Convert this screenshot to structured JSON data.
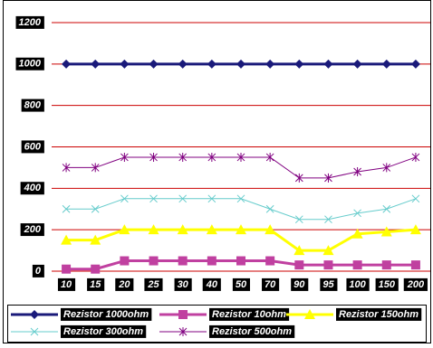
{
  "chart_data": {
    "type": "line",
    "categories": [
      "10",
      "15",
      "20",
      "25",
      "30",
      "40",
      "50",
      "70",
      "90",
      "95",
      "100",
      "150",
      "200"
    ],
    "series": [
      {
        "name": "Rezistor 1000ohm",
        "color": "#1a1a7a",
        "marker": "diamond",
        "values": [
          1000,
          1000,
          1000,
          1000,
          1000,
          1000,
          1000,
          1000,
          1000,
          1000,
          1000,
          1000,
          1000
        ]
      },
      {
        "name": "Rezistor 10ohm",
        "color": "#c040a0",
        "marker": "square",
        "values": [
          10,
          10,
          50,
          50,
          50,
          50,
          50,
          50,
          30,
          30,
          30,
          30,
          30
        ]
      },
      {
        "name": "Rezistor 150ohm",
        "color": "#ffff00",
        "marker": "triangle",
        "values": [
          150,
          150,
          200,
          200,
          200,
          200,
          200,
          200,
          100,
          100,
          180,
          190,
          200
        ]
      },
      {
        "name": "Rezistor 300ohm",
        "color": "#66cccc",
        "marker": "x",
        "values": [
          300,
          300,
          350,
          350,
          350,
          350,
          350,
          300,
          250,
          250,
          280,
          300,
          350
        ]
      },
      {
        "name": "Rezistor 500ohm",
        "color": "#800080",
        "marker": "star",
        "values": [
          500,
          500,
          550,
          550,
          550,
          550,
          550,
          550,
          450,
          450,
          480,
          500,
          550
        ]
      }
    ],
    "ylim": [
      0,
      1200
    ],
    "yticks": [
      0,
      200,
      400,
      600,
      800,
      1000,
      1200
    ],
    "grid": true,
    "grid_color": "#cc0000",
    "legend": "bottom"
  }
}
